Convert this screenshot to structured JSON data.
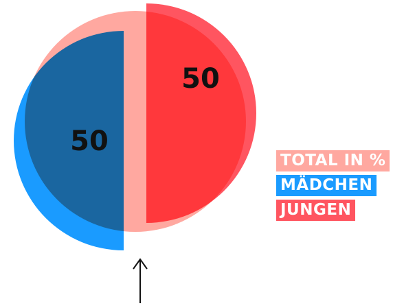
{
  "chart_data": {
    "type": "pie",
    "legend_title": "TOTAL IN %",
    "categories": [
      "MÄDCHEN",
      "JUNGEN"
    ],
    "values": [
      50,
      50
    ],
    "colors": [
      "#1a9bff",
      "#ff5560"
    ]
  }
}
